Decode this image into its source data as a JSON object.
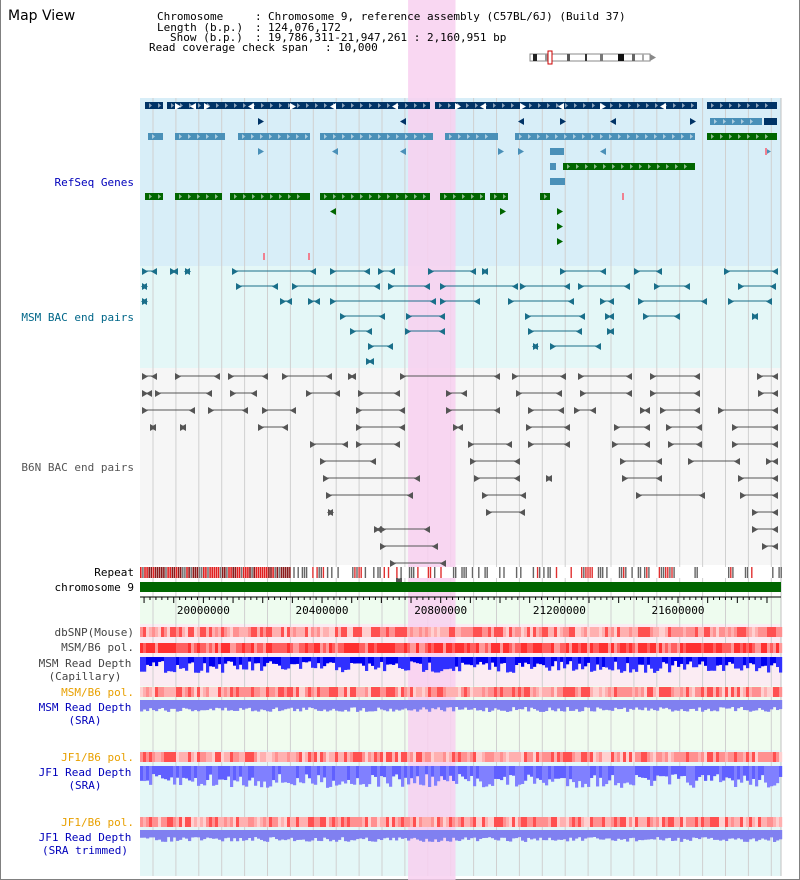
{
  "app": {
    "title": "Map View"
  },
  "header": {
    "chromosome_key": "Chromosome",
    "chromosome_value": "Chromosome 9, reference assembly (C57BL/6J) (Build 37)",
    "length_key": "Length (b.p.)",
    "length_value": "124,076,172",
    "show_key": "Show (b.p.)",
    "show_value": "19,786,311-21,947,261 : 2,160,951 bp",
    "span_key": "Read coverage check span",
    "span_value": "10,000"
  },
  "tracks": {
    "refseq": {
      "label": "RefSeq Genes",
      "color": "#0000bb"
    },
    "msm_bac": {
      "label": "MSM BAC end pairs",
      "color": "#006688"
    },
    "b6n_bac": {
      "label": "B6N BAC end pairs",
      "color": "#555555"
    },
    "repeat": {
      "label": "Repeat",
      "color": "#000000"
    },
    "chromosome": {
      "label": "chromosome 9",
      "color": "#000000"
    },
    "dbsnp": {
      "label": "dbSNP(Mouse)",
      "color": "#444444"
    },
    "msm_b6_pol": {
      "label": "MSM/B6 pol.",
      "color": "#444444"
    },
    "msm_depth_cap": {
      "label": "MSM Read Depth\n(Capillary)",
      "color": "#444444"
    },
    "msm_b6_pol2": {
      "label": "MSM/B6 pol.",
      "color": "#e8a000"
    },
    "msm_depth_sra": {
      "label": "MSM Read Depth\n(SRA)",
      "color": "#0000bb"
    },
    "jf1_b6_pol": {
      "label": "JF1/B6 pol.",
      "color": "#e8a000"
    },
    "jf1_depth_sra": {
      "label": "JF1 Read Depth\n(SRA)",
      "color": "#0000bb"
    },
    "jf1_b6_pol2": {
      "label": "JF1/B6 pol.",
      "color": "#e8a000"
    },
    "jf1_depth_trim": {
      "label": "JF1 Read Depth\n(SRA trimmed)",
      "color": "#0000bb"
    }
  },
  "axis": {
    "start": 19786311,
    "end": 21947261,
    "ticks": [
      "20000000",
      "20400000",
      "20800000",
      "21200000",
      "21600000"
    ],
    "highlight_range": [
      20690000,
      20850000
    ]
  },
  "colors": {
    "highlight": "#f8d0f0",
    "gene_blue": "#003366",
    "gene_light": "#4a90b8",
    "gene_green": "#006600",
    "bac_teal": "#1a6f8a",
    "bac_gray": "#555555",
    "chromosome_bar": "#006600",
    "depth_dark": "#0000ee",
    "depth_light": "#8080ff",
    "pol_red": "#ff3030"
  }
}
